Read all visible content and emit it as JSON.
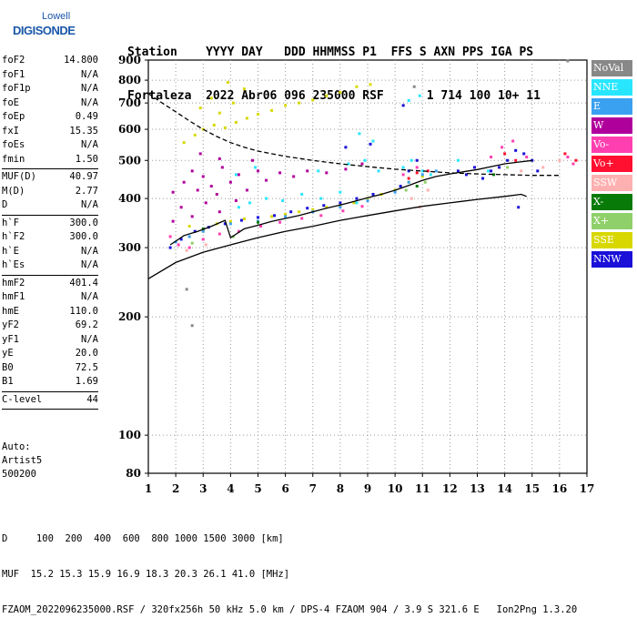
{
  "logo": {
    "line1": "Lowell",
    "line2": "DIGISONDE"
  },
  "header": {
    "line1": "Station    YYYY DAY   DDD HHMMSS P1  FFS S AXN PPS IGA PS",
    "line2": "Fortaleza  2022 Abr06 096 235000 RSF      1 714 100 10+ 11"
  },
  "params": {
    "g1": [
      {
        "label": "foF2",
        "value": "14.800"
      },
      {
        "label": "foF1",
        "value": "N/A"
      },
      {
        "label": "foF1p",
        "value": "N/A"
      },
      {
        "label": "foE",
        "value": "N/A"
      },
      {
        "label": "foEp",
        "value": "0.49"
      },
      {
        "label": "fxI",
        "value": "15.35"
      },
      {
        "label": "foEs",
        "value": "N/A"
      },
      {
        "label": "fmin",
        "value": "1.50"
      }
    ],
    "g2": [
      {
        "label": "MUF(D)",
        "value": "40.97"
      },
      {
        "label": "M(D)",
        "value": "2.77"
      },
      {
        "label": "D",
        "value": "N/A"
      }
    ],
    "g3": [
      {
        "label": "h`F",
        "value": "300.0"
      },
      {
        "label": "h`F2",
        "value": "300.0"
      },
      {
        "label": "h`E",
        "value": "N/A"
      },
      {
        "label": "h`Es",
        "value": "N/A"
      }
    ],
    "g4": [
      {
        "label": "hmF2",
        "value": "401.4"
      },
      {
        "label": "hmF1",
        "value": "N/A"
      },
      {
        "label": "hmE",
        "value": "110.0"
      },
      {
        "label": "yF2",
        "value": "69.2"
      },
      {
        "label": "yF1",
        "value": "N/A"
      },
      {
        "label": "yE",
        "value": "20.0"
      },
      {
        "label": "B0",
        "value": "72.5"
      },
      {
        "label": "B1",
        "value": "1.69"
      }
    ],
    "g5": [
      {
        "label": "C-level",
        "value": "44"
      }
    ]
  },
  "auto": {
    "line1": "Auto:",
    "line2": "Artist5",
    "line3": "500200"
  },
  "legend": [
    {
      "label": "NoVal",
      "color": "#888888"
    },
    {
      "label": "NNE",
      "color": "#29e6ff"
    },
    {
      "label": "E",
      "color": "#3aa0f0"
    },
    {
      "label": "W",
      "color": "#b0009c"
    },
    {
      "label": "Vo-",
      "color": "#ff3fb0"
    },
    {
      "label": "Vo+",
      "color": "#ff1030"
    },
    {
      "label": "SSW",
      "color": "#ffb0b0"
    },
    {
      "label": "X-",
      "color": "#087a08"
    },
    {
      "label": "X+",
      "color": "#8fd06a"
    },
    {
      "label": "SSE",
      "color": "#d8d800"
    },
    {
      "label": "NNW",
      "color": "#1a10d8"
    }
  ],
  "footer": {
    "line1": "D     100  200  400  600  800 1000 1500 3000 [km]",
    "line2": "MUF  15.2 15.3 15.9 16.9 18.3 20.3 26.1 41.0 [MHz]",
    "line3": "FZAOM_2022096235000.RSF / 320fx256h 50 kHz 5.0 km / DPS-4 FZAOM 904 / 3.9 S 321.6 E   Ion2Png 1.3.20"
  },
  "chart_data": {
    "type": "scatter",
    "xlim": [
      1,
      17
    ],
    "ylim": [
      80,
      900
    ],
    "y_scale": "log",
    "x_ticks": [
      "1",
      "2",
      "3",
      "4",
      "5",
      "6",
      "7",
      "8",
      "9",
      "10",
      "11",
      "12",
      "13",
      "14",
      "15",
      "16",
      "17"
    ],
    "y_ticks": [
      80,
      100,
      200,
      300,
      400,
      500,
      600,
      700,
      800,
      900
    ],
    "grid": true,
    "legend_position": "right",
    "series": [
      {
        "name": "W",
        "color": "#b0009c",
        "points": [
          [
            1.9,
            415
          ],
          [
            2.3,
            440
          ],
          [
            2.6,
            470
          ],
          [
            3.0,
            455
          ],
          [
            3.3,
            430
          ],
          [
            3.7,
            480
          ],
          [
            4.0,
            440
          ],
          [
            4.3,
            460
          ],
          [
            4.6,
            420
          ],
          [
            5.0,
            470
          ],
          [
            5.3,
            445
          ],
          [
            5.8,
            465
          ],
          [
            6.3,
            455
          ],
          [
            6.8,
            470
          ],
          [
            7.5,
            465
          ],
          [
            8.2,
            475
          ],
          [
            8.8,
            490
          ],
          [
            2.8,
            420
          ],
          [
            3.5,
            410
          ],
          [
            4.8,
            500
          ],
          [
            1.9,
            350
          ],
          [
            2.2,
            380
          ],
          [
            2.6,
            360
          ],
          [
            3.1,
            390
          ],
          [
            3.6,
            370
          ],
          [
            4.2,
            395
          ],
          [
            2.9,
            520
          ],
          [
            3.6,
            505
          ]
        ]
      },
      {
        "name": "SSE",
        "color": "#d8d800",
        "points": [
          [
            2.3,
            555
          ],
          [
            2.7,
            580
          ],
          [
            3.0,
            600
          ],
          [
            3.4,
            615
          ],
          [
            3.8,
            605
          ],
          [
            4.2,
            625
          ],
          [
            4.6,
            640
          ],
          [
            5.0,
            655
          ],
          [
            5.5,
            670
          ],
          [
            6.0,
            690
          ],
          [
            6.5,
            700
          ],
          [
            7.0,
            712
          ],
          [
            7.5,
            730
          ],
          [
            8.0,
            745
          ],
          [
            8.6,
            770
          ],
          [
            9.1,
            780
          ],
          [
            2.5,
            340
          ],
          [
            3.0,
            330
          ],
          [
            3.5,
            345
          ],
          [
            4.0,
            350
          ],
          [
            4.5,
            355
          ],
          [
            5.0,
            350
          ],
          [
            5.5,
            360
          ],
          [
            6.0,
            365
          ],
          [
            6.5,
            370
          ],
          [
            7.0,
            375
          ],
          [
            7.5,
            380
          ],
          [
            8.0,
            385
          ],
          [
            8.5,
            390
          ],
          [
            9.0,
            400
          ],
          [
            9.5,
            410
          ],
          [
            10.0,
            420
          ],
          [
            10.5,
            440
          ],
          [
            11.0,
            455
          ],
          [
            2.9,
            680
          ],
          [
            3.3,
            720
          ],
          [
            3.6,
            660
          ],
          [
            4.1,
            700
          ],
          [
            4.5,
            760
          ],
          [
            3.9,
            790
          ]
        ]
      },
      {
        "name": "NNE",
        "color": "#29e6ff",
        "points": [
          [
            4.3,
            380
          ],
          [
            4.7,
            390
          ],
          [
            5.3,
            400
          ],
          [
            5.9,
            395
          ],
          [
            6.6,
            410
          ],
          [
            7.3,
            400
          ],
          [
            8.0,
            415
          ],
          [
            8.6,
            390
          ],
          [
            7.2,
            470
          ],
          [
            8.3,
            490
          ],
          [
            8.9,
            500
          ],
          [
            9.4,
            470
          ],
          [
            10.3,
            480
          ],
          [
            10.6,
            500
          ],
          [
            11.0,
            470
          ],
          [
            11.3,
            460
          ],
          [
            12.3,
            500
          ],
          [
            13.4,
            470
          ],
          [
            4.2,
            460
          ],
          [
            4.9,
            480
          ],
          [
            8.7,
            585
          ],
          [
            9.2,
            560
          ],
          [
            10.5,
            710
          ],
          [
            10.9,
            730
          ]
        ]
      },
      {
        "name": "E",
        "color": "#3aa0f0",
        "points": [
          [
            2.0,
            310
          ],
          [
            2.5,
            320
          ],
          [
            3.0,
            330
          ],
          [
            4.0,
            345
          ],
          [
            5.0,
            350
          ],
          [
            6.0,
            360
          ],
          [
            7.0,
            370
          ],
          [
            8.0,
            380
          ],
          [
            9.0,
            395
          ],
          [
            10.0,
            415
          ],
          [
            10.5,
            440
          ],
          [
            11.0,
            460
          ],
          [
            11.5,
            470
          ]
        ]
      },
      {
        "name": "NNW",
        "color": "#1a10d8",
        "points": [
          [
            1.8,
            300
          ],
          [
            2.2,
            315
          ],
          [
            2.7,
            330
          ],
          [
            3.2,
            338
          ],
          [
            3.8,
            345
          ],
          [
            4.4,
            352
          ],
          [
            5.0,
            358
          ],
          [
            5.6,
            362
          ],
          [
            6.2,
            370
          ],
          [
            6.8,
            378
          ],
          [
            7.4,
            384
          ],
          [
            8.0,
            390
          ],
          [
            8.6,
            400
          ],
          [
            9.2,
            410
          ],
          [
            10.2,
            430
          ],
          [
            10.5,
            470
          ],
          [
            10.8,
            500
          ],
          [
            12.3,
            470
          ],
          [
            12.6,
            460
          ],
          [
            12.9,
            480
          ],
          [
            13.2,
            450
          ],
          [
            13.5,
            470
          ],
          [
            13.8,
            480
          ],
          [
            14.1,
            500
          ],
          [
            14.4,
            530
          ],
          [
            14.7,
            520
          ],
          [
            15.0,
            500
          ],
          [
            15.2,
            470
          ],
          [
            14.5,
            380
          ],
          [
            8.2,
            540
          ],
          [
            9.1,
            550
          ],
          [
            10.3,
            690
          ]
        ]
      },
      {
        "name": "Vo-",
        "color": "#ff3fb0",
        "points": [
          [
            1.8,
            320
          ],
          [
            2.1,
            305
          ],
          [
            2.5,
            300
          ],
          [
            3.0,
            315
          ],
          [
            3.6,
            325
          ],
          [
            4.3,
            330
          ],
          [
            5.1,
            340
          ],
          [
            5.8,
            348
          ],
          [
            6.6,
            356
          ],
          [
            7.3,
            362
          ],
          [
            8.1,
            372
          ],
          [
            8.8,
            382
          ],
          [
            10.3,
            460
          ],
          [
            10.8,
            480
          ],
          [
            13.9,
            540
          ],
          [
            14.3,
            560
          ],
          [
            14.8,
            510
          ],
          [
            16.3,
            510
          ],
          [
            16.5,
            490
          ],
          [
            13.5,
            510
          ]
        ]
      },
      {
        "name": "Vo+",
        "color": "#ff1030",
        "points": [
          [
            10.5,
            450
          ],
          [
            10.8,
            465
          ],
          [
            11.2,
            470
          ],
          [
            14.0,
            520
          ],
          [
            14.4,
            500
          ],
          [
            16.2,
            520
          ],
          [
            16.6,
            500
          ]
        ]
      },
      {
        "name": "SSW",
        "color": "#ffb0b0",
        "points": [
          [
            2.4,
            295
          ],
          [
            3.1,
            305
          ],
          [
            10.6,
            400
          ],
          [
            10.9,
            380
          ],
          [
            11.2,
            420
          ],
          [
            14.6,
            470
          ],
          [
            15.4,
            480
          ],
          [
            16.0,
            500
          ]
        ]
      },
      {
        "name": "X-",
        "color": "#087a08",
        "points": [
          [
            3.0,
            335
          ],
          [
            5.0,
            348
          ],
          [
            10.8,
            430
          ],
          [
            13.6,
            460
          ]
        ]
      },
      {
        "name": "X+",
        "color": "#8fd06a",
        "points": [
          [
            2.6,
            308
          ],
          [
            4.1,
            320
          ],
          [
            10.4,
            420
          ],
          [
            11.1,
            440
          ],
          [
            14.1,
            480
          ]
        ]
      },
      {
        "name": "NoVal",
        "color": "#888888",
        "points": [
          [
            2.4,
            235
          ],
          [
            2.6,
            190
          ],
          [
            10.7,
            770
          ],
          [
            16.3,
            895
          ]
        ]
      }
    ],
    "curves": [
      {
        "name": "",
        "style": "solid",
        "color": "#000000",
        "points": [
          [
            1.0,
            250
          ],
          [
            2.0,
            275
          ],
          [
            3.0,
            292
          ],
          [
            4.0,
            305
          ],
          [
            5.0,
            318
          ],
          [
            6.0,
            330
          ],
          [
            7.0,
            340
          ],
          [
            8.0,
            352
          ],
          [
            9.0,
            362
          ],
          [
            10.0,
            372
          ],
          [
            11.0,
            382
          ],
          [
            12.0,
            390
          ],
          [
            13.0,
            398
          ],
          [
            14.0,
            405
          ],
          [
            14.6,
            410
          ],
          [
            14.8,
            405
          ]
        ]
      },
      {
        "name": "",
        "style": "solid",
        "color": "#000000",
        "points": [
          [
            1.8,
            305
          ],
          [
            2.3,
            322
          ],
          [
            2.8,
            330
          ],
          [
            3.3,
            340
          ],
          [
            3.8,
            352
          ],
          [
            4.0,
            318
          ],
          [
            4.5,
            335
          ],
          [
            5.0,
            342
          ],
          [
            5.5,
            350
          ],
          [
            6.0,
            356
          ],
          [
            6.5,
            362
          ],
          [
            7.0,
            370
          ],
          [
            7.5,
            378
          ],
          [
            8.0,
            385
          ],
          [
            8.5,
            393
          ],
          [
            9.0,
            402
          ],
          [
            9.5,
            410
          ],
          [
            10.0,
            420
          ],
          [
            10.5,
            432
          ],
          [
            11.0,
            445
          ],
          [
            11.5,
            455
          ],
          [
            12.0,
            462
          ],
          [
            12.5,
            468
          ],
          [
            13.0,
            474
          ],
          [
            13.5,
            482
          ],
          [
            14.0,
            490
          ],
          [
            14.5,
            495
          ],
          [
            15.0,
            500
          ]
        ]
      },
      {
        "name": "",
        "style": "dashed",
        "color": "#000000",
        "points": [
          [
            1.0,
            740
          ],
          [
            1.5,
            700
          ],
          [
            2.0,
            665
          ],
          [
            2.5,
            630
          ],
          [
            3.0,
            600
          ],
          [
            3.5,
            575
          ],
          [
            4.0,
            555
          ],
          [
            4.5,
            540
          ],
          [
            5.0,
            528
          ],
          [
            6.0,
            512
          ],
          [
            7.0,
            500
          ],
          [
            8.0,
            490
          ],
          [
            9.0,
            482
          ],
          [
            10.0,
            475
          ],
          [
            11.0,
            470
          ],
          [
            12.0,
            465
          ],
          [
            13.0,
            462
          ],
          [
            14.0,
            460
          ],
          [
            15.0,
            458
          ],
          [
            16.0,
            458
          ]
        ]
      }
    ]
  }
}
